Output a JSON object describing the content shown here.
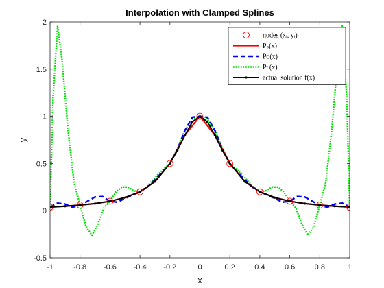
{
  "chart_data": {
    "type": "line",
    "title": "Interpolation with Clamped Splines",
    "xlabel": "x",
    "ylabel": "y",
    "xlim": [
      -1,
      1
    ],
    "ylim": [
      -0.5,
      2
    ],
    "xticks": [
      -1,
      -0.8,
      -0.6,
      -0.4,
      -0.2,
      0,
      0.2,
      0.4,
      0.6,
      0.8,
      1
    ],
    "xtick_labels": [
      "-1",
      "-0.8",
      "-0.6",
      "-0.4",
      "-0.2",
      "0",
      "0.2",
      "0.4",
      "0.6",
      "0.8",
      "1"
    ],
    "yticks": [
      -0.5,
      0,
      0.5,
      1,
      1.5,
      2
    ],
    "ytick_labels": [
      "-0.5",
      "0",
      "0.5",
      "1",
      "1.5",
      "2"
    ],
    "grid": false,
    "legend_position": "top-right",
    "series": [
      {
        "name": "nodes (x_i, y_i)",
        "kind": "markers",
        "color": "#ff0000",
        "x": [
          -1,
          -0.8,
          -0.6,
          -0.4,
          -0.2,
          0,
          0.2,
          0.4,
          0.6,
          0.8,
          1
        ],
        "y": [
          0.038,
          0.059,
          0.1,
          0.2,
          0.5,
          1,
          0.5,
          0.2,
          0.1,
          0.059,
          0.038
        ]
      },
      {
        "name": "P_S(x)",
        "kind": "solid",
        "color": "#ff0000",
        "x": [
          -1,
          -0.9,
          -0.8,
          -0.7,
          -0.6,
          -0.5,
          -0.4,
          -0.3,
          -0.2,
          -0.1,
          0,
          0.1,
          0.2,
          0.3,
          0.4,
          0.5,
          0.6,
          0.7,
          0.8,
          0.9,
          1
        ],
        "y": [
          0.038,
          0.047,
          0.059,
          0.075,
          0.1,
          0.138,
          0.2,
          0.308,
          0.5,
          0.8,
          1,
          0.8,
          0.5,
          0.308,
          0.2,
          0.138,
          0.1,
          0.075,
          0.059,
          0.047,
          0.038
        ]
      },
      {
        "name": "P_C(x)",
        "kind": "dashed",
        "color": "#0000ff",
        "x": [
          -1,
          -0.95,
          -0.9,
          -0.85,
          -0.8,
          -0.75,
          -0.7,
          -0.65,
          -0.6,
          -0.55,
          -0.5,
          -0.45,
          -0.4,
          -0.35,
          -0.3,
          -0.25,
          -0.2,
          -0.15,
          -0.1,
          -0.05,
          0,
          0.05,
          0.1,
          0.15,
          0.2,
          0.25,
          0.3,
          0.35,
          0.4,
          0.45,
          0.5,
          0.55,
          0.6,
          0.65,
          0.7,
          0.75,
          0.8,
          0.85,
          0.9,
          0.95,
          1
        ],
        "y": [
          0.038,
          0.08,
          0.07,
          0.035,
          0.059,
          0.1,
          0.145,
          0.15,
          0.1,
          0.09,
          0.13,
          0.165,
          0.2,
          0.25,
          0.33,
          0.41,
          0.5,
          0.65,
          0.85,
          0.99,
          1,
          0.99,
          0.85,
          0.65,
          0.5,
          0.41,
          0.33,
          0.25,
          0.2,
          0.165,
          0.13,
          0.09,
          0.1,
          0.15,
          0.145,
          0.1,
          0.059,
          0.035,
          0.07,
          0.08,
          0.038
        ]
      },
      {
        "name": "P_L(x)",
        "kind": "dotted",
        "color": "#00dd00",
        "x": [
          -1,
          -0.98,
          -0.95,
          -0.92,
          -0.88,
          -0.84,
          -0.8,
          -0.76,
          -0.72,
          -0.68,
          -0.64,
          -0.6,
          -0.56,
          -0.52,
          -0.48,
          -0.44,
          -0.4,
          -0.35,
          -0.3,
          -0.25,
          -0.2,
          -0.15,
          -0.1,
          -0.05,
          0,
          0.05,
          0.1,
          0.15,
          0.2,
          0.25,
          0.3,
          0.35,
          0.4,
          0.44,
          0.48,
          0.52,
          0.56,
          0.6,
          0.64,
          0.68,
          0.72,
          0.76,
          0.8,
          0.84,
          0.88,
          0.92,
          0.95,
          0.98,
          1
        ],
        "y": [
          0.038,
          1.2,
          1.96,
          1.6,
          0.85,
          0.3,
          0.059,
          -0.17,
          -0.26,
          -0.14,
          0.03,
          0.1,
          0.2,
          0.25,
          0.25,
          0.21,
          0.2,
          0.26,
          0.35,
          0.43,
          0.5,
          0.66,
          0.85,
          0.97,
          1,
          0.97,
          0.85,
          0.66,
          0.5,
          0.43,
          0.35,
          0.26,
          0.2,
          0.21,
          0.25,
          0.25,
          0.2,
          0.1,
          0.03,
          -0.14,
          -0.26,
          -0.17,
          0.059,
          0.3,
          0.85,
          1.6,
          1.96,
          1.2,
          0.038
        ]
      },
      {
        "name": "actual solution f(x)",
        "kind": "solid-with-dots",
        "color": "#000000",
        "x": [
          -1,
          -0.9,
          -0.8,
          -0.7,
          -0.6,
          -0.5,
          -0.4,
          -0.3,
          -0.2,
          -0.15,
          -0.1,
          -0.05,
          0,
          0.05,
          0.1,
          0.15,
          0.2,
          0.3,
          0.4,
          0.5,
          0.6,
          0.7,
          0.8,
          0.9,
          1
        ],
        "y": [
          0.038,
          0.047,
          0.059,
          0.075,
          0.1,
          0.138,
          0.2,
          0.308,
          0.5,
          0.64,
          0.8,
          0.941,
          1,
          0.941,
          0.8,
          0.64,
          0.5,
          0.308,
          0.2,
          0.138,
          0.1,
          0.075,
          0.059,
          0.047,
          0.038
        ]
      }
    ]
  }
}
